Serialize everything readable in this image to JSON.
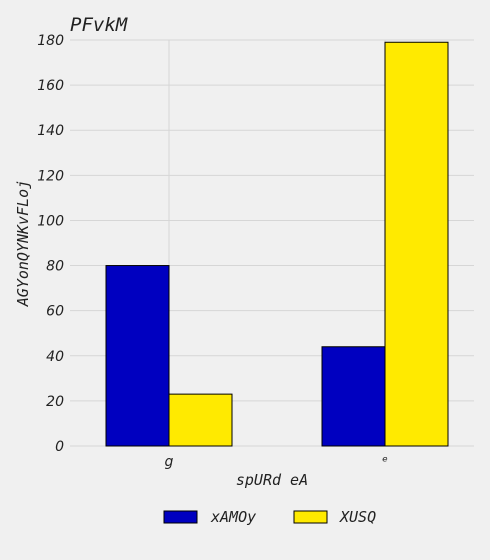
{
  "chart_data": {
    "type": "bar",
    "title": "PFvkM",
    "xlabel": "spURd eA",
    "ylabel": "AGYonQYNKvFLoj",
    "categories": [
      "g",
      "ᵉ"
    ],
    "series": [
      {
        "name": "xAMOy",
        "values": [
          80,
          44
        ]
      },
      {
        "name": "XUSQ",
        "values": [
          23,
          179
        ]
      }
    ],
    "ylim": [
      0,
      180
    ],
    "yticks": [
      0,
      20,
      40,
      60,
      80,
      100,
      120,
      140,
      160,
      180
    ],
    "grid": true,
    "legend_position": "bottom-center",
    "colors": {
      "xAMOy": "#0000c0",
      "XUSQ": "#ffea00",
      "background": "#f0f0f0",
      "grid": "#d6d6d6"
    }
  }
}
